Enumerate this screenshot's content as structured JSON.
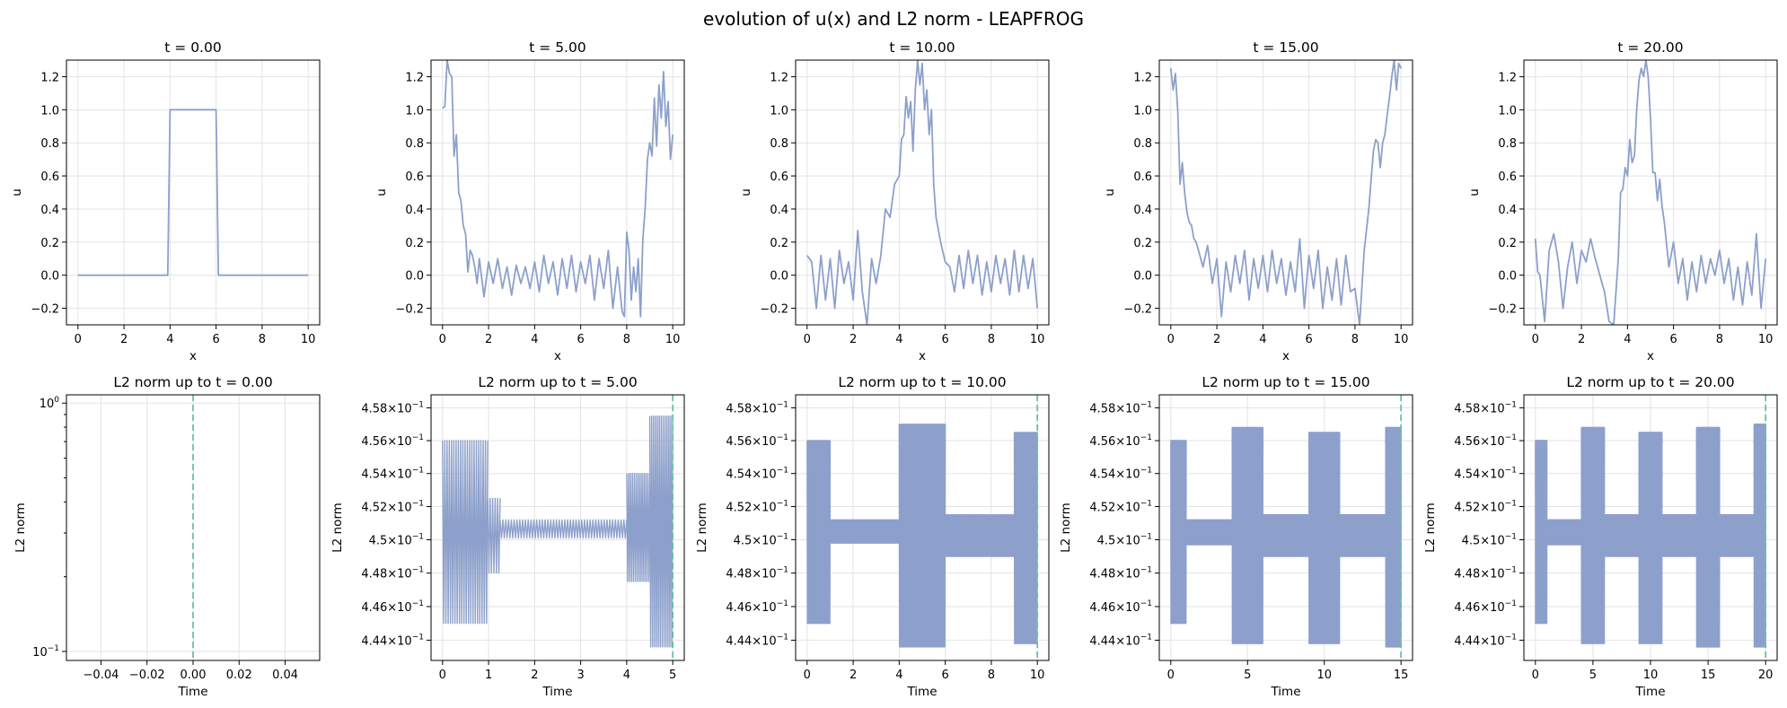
{
  "figure": {
    "suptitle": "evolution of u(x) and L2 norm - LEAPFROG",
    "line_color": "#8da0cb",
    "marker_color": "#66c2a5"
  },
  "chart_data": [
    {
      "type": "line",
      "row": "u",
      "title": "t = 0.00",
      "xlabel": "x",
      "ylabel": "u",
      "xlim": [
        -0.5,
        10.5
      ],
      "ylim": [
        -0.3,
        1.3
      ],
      "xticks": [
        0,
        2,
        4,
        6,
        8,
        10
      ],
      "xtick_labels": [
        "0",
        "2",
        "4",
        "6",
        "8",
        "10"
      ],
      "yticks": [
        -0.2,
        0.0,
        0.2,
        0.4,
        0.6,
        0.8,
        1.0,
        1.2
      ],
      "ytick_labels": [
        "−0.2",
        "0.0",
        "0.2",
        "0.4",
        "0.6",
        "0.8",
        "1.0",
        "1.2"
      ],
      "x": [
        0,
        3.9,
        4.0,
        6.0,
        6.1,
        10
      ],
      "y": [
        0,
        0,
        1,
        1,
        0,
        0
      ]
    },
    {
      "type": "line",
      "row": "u",
      "title": "t = 5.00",
      "xlabel": "x",
      "ylabel": "u",
      "xlim": [
        -0.5,
        10.5
      ],
      "ylim": [
        -0.3,
        1.3
      ],
      "xticks": [
        0,
        2,
        4,
        6,
        8,
        10
      ],
      "xtick_labels": [
        "0",
        "2",
        "4",
        "6",
        "8",
        "10"
      ],
      "yticks": [
        -0.2,
        0.0,
        0.2,
        0.4,
        0.6,
        0.8,
        1.0,
        1.2
      ],
      "ytick_labels": [
        "−0.2",
        "0.0",
        "0.2",
        "0.4",
        "0.6",
        "0.8",
        "1.0",
        "1.2"
      ],
      "x": [
        0,
        0.1,
        0.2,
        0.3,
        0.4,
        0.5,
        0.6,
        0.7,
        0.8,
        0.9,
        1.0,
        1.1,
        1.2,
        1.3,
        1.4,
        1.5,
        1.6,
        1.8,
        2.0,
        2.2,
        2.4,
        2.6,
        2.8,
        3.0,
        3.2,
        3.4,
        3.6,
        3.8,
        4.0,
        4.2,
        4.4,
        4.6,
        4.8,
        5.0,
        5.2,
        5.4,
        5.6,
        5.8,
        6.0,
        6.2,
        6.4,
        6.6,
        6.8,
        7.0,
        7.2,
        7.4,
        7.6,
        7.8,
        7.9,
        8.0,
        8.1,
        8.2,
        8.3,
        8.4,
        8.5,
        8.6,
        8.7,
        8.8,
        8.9,
        9.0,
        9.1,
        9.2,
        9.3,
        9.4,
        9.5,
        9.6,
        9.7,
        9.8,
        9.9,
        10.0
      ],
      "y": [
        1.01,
        1.02,
        1.3,
        1.22,
        1.2,
        0.72,
        0.85,
        0.5,
        0.45,
        0.3,
        0.25,
        0.02,
        0.15,
        0.12,
        0.05,
        -0.05,
        0.1,
        -0.13,
        0.08,
        -0.05,
        0.1,
        -0.08,
        0.05,
        -0.12,
        0.06,
        -0.05,
        0.05,
        -0.08,
        0.08,
        -0.1,
        0.12,
        -0.05,
        0.08,
        -0.12,
        0.1,
        -0.08,
        0.12,
        -0.1,
        0.08,
        -0.05,
        0.12,
        -0.15,
        0.1,
        -0.08,
        0.15,
        -0.2,
        0.05,
        -0.22,
        -0.25,
        0.26,
        0.15,
        -0.15,
        0.05,
        -0.1,
        0.1,
        -0.25,
        0.22,
        0.4,
        0.7,
        0.8,
        0.72,
        1.07,
        0.78,
        1.15,
        0.95,
        1.23,
        0.9,
        1.05,
        0.7,
        0.85
      ]
    },
    {
      "type": "line",
      "row": "u",
      "title": "t = 10.00",
      "xlabel": "x",
      "ylabel": "u",
      "xlim": [
        -0.5,
        10.5
      ],
      "ylim": [
        -0.3,
        1.3
      ],
      "xticks": [
        0,
        2,
        4,
        6,
        8,
        10
      ],
      "xtick_labels": [
        "0",
        "2",
        "4",
        "6",
        "8",
        "10"
      ],
      "yticks": [
        -0.2,
        0.0,
        0.2,
        0.4,
        0.6,
        0.8,
        1.0,
        1.2
      ],
      "ytick_labels": [
        "−0.2",
        "0.0",
        "0.2",
        "0.4",
        "0.6",
        "0.8",
        "1.0",
        "1.2"
      ],
      "x": [
        0,
        0.2,
        0.4,
        0.6,
        0.8,
        1.0,
        1.2,
        1.4,
        1.6,
        1.8,
        2.0,
        2.2,
        2.4,
        2.6,
        2.8,
        3.0,
        3.2,
        3.4,
        3.6,
        3.8,
        4.0,
        4.1,
        4.2,
        4.3,
        4.4,
        4.5,
        4.6,
        4.7,
        4.8,
        4.9,
        5.0,
        5.1,
        5.2,
        5.3,
        5.4,
        5.5,
        5.6,
        5.8,
        6.0,
        6.2,
        6.4,
        6.6,
        6.8,
        7.0,
        7.2,
        7.4,
        7.6,
        7.8,
        8.0,
        8.2,
        8.4,
        8.6,
        8.8,
        9.0,
        9.2,
        9.4,
        9.6,
        9.8,
        10.0
      ],
      "y": [
        0.12,
        0.08,
        -0.2,
        0.12,
        -0.15,
        0.1,
        -0.2,
        0.15,
        -0.05,
        0.08,
        -0.15,
        0.27,
        -0.1,
        -0.3,
        0.1,
        -0.05,
        0.12,
        0.4,
        0.35,
        0.55,
        0.6,
        0.82,
        0.85,
        1.08,
        0.95,
        1.05,
        0.75,
        1.12,
        1.3,
        1.15,
        1.28,
        1.0,
        1.12,
        0.85,
        1.0,
        0.55,
        0.35,
        0.2,
        0.08,
        0.05,
        -0.1,
        0.12,
        -0.08,
        0.15,
        -0.05,
        0.12,
        -0.12,
        0.08,
        -0.1,
        0.12,
        -0.05,
        0.1,
        -0.12,
        0.15,
        -0.1,
        0.12,
        -0.08,
        0.1,
        -0.2
      ]
    },
    {
      "type": "line",
      "row": "u",
      "title": "t = 15.00",
      "xlabel": "x",
      "ylabel": "u",
      "xlim": [
        -0.5,
        10.5
      ],
      "ylim": [
        -0.3,
        1.3
      ],
      "xticks": [
        0,
        2,
        4,
        6,
        8,
        10
      ],
      "xtick_labels": [
        "0",
        "2",
        "4",
        "6",
        "8",
        "10"
      ],
      "yticks": [
        -0.2,
        0.0,
        0.2,
        0.4,
        0.6,
        0.8,
        1.0,
        1.2
      ],
      "ytick_labels": [
        "−0.2",
        "0.0",
        "0.2",
        "0.4",
        "0.6",
        "0.8",
        "1.0",
        "1.2"
      ],
      "x": [
        0,
        0.1,
        0.2,
        0.3,
        0.4,
        0.5,
        0.6,
        0.7,
        0.8,
        0.9,
        1.0,
        1.1,
        1.2,
        1.4,
        1.6,
        1.8,
        2.0,
        2.2,
        2.4,
        2.6,
        2.8,
        3.0,
        3.2,
        3.4,
        3.6,
        3.8,
        4.0,
        4.2,
        4.4,
        4.6,
        4.8,
        5.0,
        5.2,
        5.4,
        5.6,
        5.8,
        6.0,
        6.2,
        6.4,
        6.6,
        6.8,
        7.0,
        7.2,
        7.4,
        7.6,
        7.8,
        8.0,
        8.2,
        8.4,
        8.6,
        8.8,
        8.9,
        9.0,
        9.1,
        9.2,
        9.3,
        9.4,
        9.5,
        9.6,
        9.7,
        9.8,
        9.9,
        10.0
      ],
      "y": [
        1.25,
        1.12,
        1.22,
        1.0,
        0.55,
        0.68,
        0.5,
        0.38,
        0.32,
        0.3,
        0.22,
        0.2,
        0.15,
        0.05,
        0.18,
        -0.05,
        0.1,
        -0.25,
        0.08,
        -0.1,
        0.12,
        -0.05,
        0.15,
        -0.15,
        0.1,
        -0.08,
        0.12,
        -0.1,
        0.15,
        -0.05,
        0.1,
        -0.12,
        0.08,
        -0.1,
        0.22,
        -0.2,
        0.12,
        -0.08,
        0.15,
        -0.2,
        0.05,
        -0.15,
        0.1,
        -0.18,
        0.12,
        -0.1,
        -0.08,
        -0.3,
        0.15,
        0.4,
        0.75,
        0.82,
        0.8,
        0.65,
        0.8,
        0.85,
        0.97,
        1.08,
        1.2,
        1.3,
        1.12,
        1.28,
        1.25
      ]
    },
    {
      "type": "line",
      "row": "u",
      "title": "t = 20.00",
      "xlabel": "x",
      "ylabel": "u",
      "xlim": [
        -0.5,
        10.5
      ],
      "ylim": [
        -0.3,
        1.3
      ],
      "xticks": [
        0,
        2,
        4,
        6,
        8,
        10
      ],
      "xtick_labels": [
        "0",
        "2",
        "4",
        "6",
        "8",
        "10"
      ],
      "yticks": [
        -0.2,
        0.0,
        0.2,
        0.4,
        0.6,
        0.8,
        1.0,
        1.2
      ],
      "ytick_labels": [
        "−0.2",
        "0.0",
        "0.2",
        "0.4",
        "0.6",
        "0.8",
        "1.0",
        "1.2"
      ],
      "x": [
        0,
        0.1,
        0.2,
        0.4,
        0.6,
        0.8,
        1.0,
        1.2,
        1.4,
        1.6,
        1.8,
        2.0,
        2.2,
        2.4,
        2.6,
        2.8,
        3.0,
        3.2,
        3.4,
        3.6,
        3.7,
        3.8,
        3.9,
        4.0,
        4.1,
        4.2,
        4.3,
        4.4,
        4.5,
        4.6,
        4.7,
        4.8,
        4.9,
        5.0,
        5.1,
        5.2,
        5.3,
        5.4,
        5.5,
        5.6,
        5.8,
        6.0,
        6.2,
        6.4,
        6.6,
        6.8,
        7.0,
        7.2,
        7.4,
        7.6,
        7.8,
        8.0,
        8.2,
        8.4,
        8.6,
        8.8,
        9.0,
        9.2,
        9.4,
        9.6,
        9.8,
        10.0
      ],
      "y": [
        0.22,
        0.02,
        0.0,
        -0.28,
        0.15,
        0.25,
        0.08,
        -0.2,
        0.05,
        0.2,
        -0.05,
        0.15,
        0.08,
        0.22,
        0.1,
        0.0,
        -0.1,
        -0.28,
        -0.3,
        0.1,
        0.5,
        0.52,
        0.65,
        0.6,
        0.82,
        0.68,
        0.72,
        1.0,
        1.18,
        1.25,
        1.2,
        1.3,
        1.2,
        0.95,
        0.62,
        0.62,
        0.45,
        0.58,
        0.42,
        0.32,
        0.05,
        0.2,
        -0.05,
        0.1,
        -0.15,
        0.08,
        -0.1,
        0.12,
        -0.05,
        0.1,
        0.0,
        0.15,
        -0.05,
        0.1,
        -0.15,
        0.05,
        -0.18,
        0.08,
        -0.12,
        0.25,
        -0.2,
        0.1
      ]
    },
    {
      "type": "line",
      "row": "l2",
      "scale": "log",
      "title": "L2 norm up to t = 0.00",
      "xlabel": "Time",
      "ylabel": "L2 norm",
      "xlim": [
        -0.055,
        0.055
      ],
      "ylim": [
        0.092,
        1.08
      ],
      "xticks": [
        -0.04,
        -0.02,
        0.0,
        0.02,
        0.04
      ],
      "xtick_labels": [
        "−0.04",
        "−0.02",
        "0.00",
        "0.02",
        "0.04"
      ],
      "yticks": [
        0.1,
        1.0
      ],
      "ytick_base": [
        "10",
        "10"
      ],
      "ytick_exp": [
        "−1",
        "0"
      ],
      "minor_yticks": [
        0.2,
        0.3,
        0.4,
        0.5,
        0.6,
        0.7,
        0.8,
        0.9
      ],
      "vline": 0.0,
      "segments": []
    },
    {
      "type": "line",
      "row": "l2",
      "scale": "log",
      "title": "L2 norm up to t = 5.00",
      "xlabel": "Time",
      "ylabel": "L2 norm",
      "xlim": [
        -0.25,
        5.25
      ],
      "ylim": [
        0.4428,
        0.4588
      ],
      "xticks": [
        0,
        1,
        2,
        3,
        4,
        5
      ],
      "xtick_labels": [
        "0",
        "1",
        "2",
        "3",
        "4",
        "5"
      ],
      "yticks": [
        0.444,
        0.446,
        0.448,
        0.45,
        0.452,
        0.454,
        0.456,
        0.458
      ],
      "ytick_base": [
        "4.44×10",
        "4.46×10",
        "4.48×10",
        "4.5×10",
        "4.52×10",
        "4.54×10",
        "4.56×10",
        "4.58×10"
      ],
      "ytick_exp": [
        "−1",
        "−1",
        "−1",
        "−1",
        "−1",
        "−1",
        "−1",
        "−1"
      ],
      "vline": 5.0,
      "segments": [
        {
          "t0": 0.0,
          "t1": 0.98,
          "lo": 0.445,
          "hi": 0.456,
          "cycles": 20
        },
        {
          "t0": 0.98,
          "t1": 1.25,
          "lo": 0.448,
          "hi": 0.4525,
          "cycles": 5
        },
        {
          "t0": 1.25,
          "t1": 4.0,
          "lo": 0.4501,
          "hi": 0.4512,
          "cycles": 45
        },
        {
          "t0": 4.0,
          "t1": 4.5,
          "lo": 0.4475,
          "hi": 0.454,
          "cycles": 12
        },
        {
          "t0": 4.5,
          "t1": 5.0,
          "lo": 0.4436,
          "hi": 0.4575,
          "cycles": 12
        }
      ]
    },
    {
      "type": "line",
      "row": "l2",
      "scale": "log",
      "title": "L2 norm up to t = 10.00",
      "xlabel": "Time",
      "ylabel": "L2 norm",
      "xlim": [
        -0.5,
        10.5
      ],
      "ylim": [
        0.4428,
        0.4588
      ],
      "xticks": [
        0,
        2,
        4,
        6,
        8,
        10
      ],
      "xtick_labels": [
        "0",
        "2",
        "4",
        "6",
        "8",
        "10"
      ],
      "yticks": [
        0.444,
        0.446,
        0.448,
        0.45,
        0.452,
        0.454,
        0.456,
        0.458
      ],
      "ytick_base": [
        "4.44×10",
        "4.46×10",
        "4.48×10",
        "4.5×10",
        "4.52×10",
        "4.54×10",
        "4.56×10",
        "4.58×10"
      ],
      "ytick_exp": [
        "−1",
        "−1",
        "−1",
        "−1",
        "−1",
        "−1",
        "−1",
        "−1"
      ],
      "vline": 10.0,
      "segments": [
        {
          "t0": 0.0,
          "t1": 1.0,
          "lo": 0.445,
          "hi": 0.456,
          "cycles": 40
        },
        {
          "t0": 1.0,
          "t1": 4.0,
          "lo": 0.4498,
          "hi": 0.4512,
          "cycles": 90
        },
        {
          "t0": 4.0,
          "t1": 6.0,
          "lo": 0.4436,
          "hi": 0.457,
          "cycles": 70
        },
        {
          "t0": 6.0,
          "t1": 9.0,
          "lo": 0.449,
          "hi": 0.4515,
          "cycles": 90
        },
        {
          "t0": 9.0,
          "t1": 10.0,
          "lo": 0.4438,
          "hi": 0.4565,
          "cycles": 40
        }
      ]
    },
    {
      "type": "line",
      "row": "l2",
      "scale": "log",
      "title": "L2 norm up to t = 15.00",
      "xlabel": "Time",
      "ylabel": "L2 norm",
      "xlim": [
        -0.75,
        15.75
      ],
      "ylim": [
        0.4428,
        0.4588
      ],
      "xticks": [
        0,
        5,
        10,
        15
      ],
      "xtick_labels": [
        "0",
        "5",
        "10",
        "15"
      ],
      "yticks": [
        0.444,
        0.446,
        0.448,
        0.45,
        0.452,
        0.454,
        0.456,
        0.458
      ],
      "ytick_base": [
        "4.44×10",
        "4.46×10",
        "4.48×10",
        "4.5×10",
        "4.52×10",
        "4.54×10",
        "4.56×10",
        "4.58×10"
      ],
      "ytick_exp": [
        "−1",
        "−1",
        "−1",
        "−1",
        "−1",
        "−1",
        "−1",
        "−1"
      ],
      "vline": 15.0,
      "segments": [
        {
          "t0": 0.0,
          "t1": 1.0,
          "lo": 0.445,
          "hi": 0.456,
          "cycles": 50
        },
        {
          "t0": 1.0,
          "t1": 4.0,
          "lo": 0.4497,
          "hi": 0.4512,
          "cycles": 110
        },
        {
          "t0": 4.0,
          "t1": 6.0,
          "lo": 0.4438,
          "hi": 0.4568,
          "cycles": 90
        },
        {
          "t0": 6.0,
          "t1": 9.0,
          "lo": 0.449,
          "hi": 0.4515,
          "cycles": 110
        },
        {
          "t0": 9.0,
          "t1": 11.0,
          "lo": 0.4438,
          "hi": 0.4565,
          "cycles": 90
        },
        {
          "t0": 11.0,
          "t1": 14.0,
          "lo": 0.449,
          "hi": 0.4515,
          "cycles": 110
        },
        {
          "t0": 14.0,
          "t1": 15.0,
          "lo": 0.4436,
          "hi": 0.4568,
          "cycles": 50
        }
      ]
    },
    {
      "type": "line",
      "row": "l2",
      "scale": "log",
      "title": "L2 norm up to t = 20.00",
      "xlabel": "Time",
      "ylabel": "L2 norm",
      "xlim": [
        -1.0,
        21.0
      ],
      "ylim": [
        0.4428,
        0.4588
      ],
      "xticks": [
        0,
        5,
        10,
        15,
        20
      ],
      "xtick_labels": [
        "0",
        "5",
        "10",
        "15",
        "20"
      ],
      "yticks": [
        0.444,
        0.446,
        0.448,
        0.45,
        0.452,
        0.454,
        0.456,
        0.458
      ],
      "ytick_base": [
        "4.44×10",
        "4.46×10",
        "4.48×10",
        "4.5×10",
        "4.52×10",
        "4.54×10",
        "4.56×10",
        "4.58×10"
      ],
      "ytick_exp": [
        "−1",
        "−1",
        "−1",
        "−1",
        "−1",
        "−1",
        "−1",
        "−1"
      ],
      "vline": 20.0,
      "segments": [
        {
          "t0": 0.0,
          "t1": 1.0,
          "lo": 0.445,
          "hi": 0.456,
          "cycles": 50
        },
        {
          "t0": 1.0,
          "t1": 4.0,
          "lo": 0.4497,
          "hi": 0.4512,
          "cycles": 110
        },
        {
          "t0": 4.0,
          "t1": 6.0,
          "lo": 0.4438,
          "hi": 0.4568,
          "cycles": 90
        },
        {
          "t0": 6.0,
          "t1": 9.0,
          "lo": 0.449,
          "hi": 0.4515,
          "cycles": 110
        },
        {
          "t0": 9.0,
          "t1": 11.0,
          "lo": 0.4438,
          "hi": 0.4565,
          "cycles": 90
        },
        {
          "t0": 11.0,
          "t1": 14.0,
          "lo": 0.449,
          "hi": 0.4515,
          "cycles": 110
        },
        {
          "t0": 14.0,
          "t1": 16.0,
          "lo": 0.4436,
          "hi": 0.4568,
          "cycles": 90
        },
        {
          "t0": 16.0,
          "t1": 19.0,
          "lo": 0.449,
          "hi": 0.4515,
          "cycles": 110
        },
        {
          "t0": 19.0,
          "t1": 20.0,
          "lo": 0.4436,
          "hi": 0.457,
          "cycles": 50
        }
      ]
    }
  ]
}
